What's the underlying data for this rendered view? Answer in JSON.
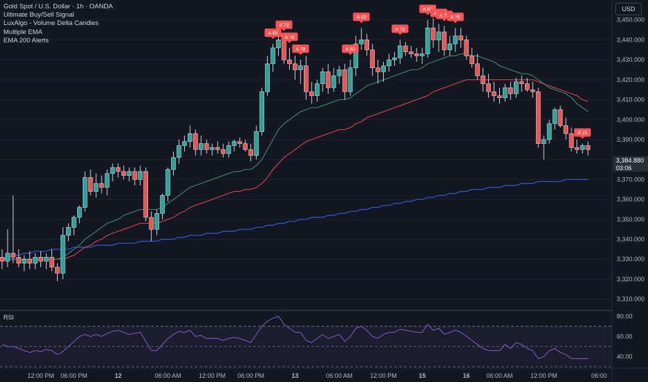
{
  "header": {
    "symbol_title": "Gold Spot / U.S. Dollar · 1h · OANDA",
    "indicators": [
      "Ultimate Buy/Sell Signal",
      "LuxAlgo - Volume Delta Candles",
      "Multiple EMA",
      "EMA 200 Alerts"
    ],
    "currency_button": "USD"
  },
  "colors": {
    "background": "#131722",
    "up": "#26a69a",
    "down": "#ef5350",
    "ema_fast": "#3c8d6e",
    "ema_mid": "#d9434e",
    "ema_200": "#2f5cd6",
    "rsi": "#7e57c2",
    "signal": "#ff5252"
  },
  "price_tag": {
    "price": "3,384.880",
    "countdown": "03:06"
  },
  "rsi_panel": {
    "label": "RSI",
    "levels": [
      "80.00",
      "60.00",
      "40.00"
    ]
  },
  "chart_data": {
    "type": "candlestick",
    "ylim": [
      3305,
      3460
    ],
    "y_ticks": [
      "3,450.000",
      "3,440.000",
      "3,430.000",
      "3,420.000",
      "3,410.000",
      "3,400.000",
      "3,390.000",
      "3,380.000",
      "3,370.000",
      "3,360.000",
      "3,350.000",
      "3,340.000",
      "3,330.000",
      "3,320.000",
      "3,310.000"
    ],
    "x_ticks": [
      "12:00 PM",
      "06:00 PM",
      "12",
      "06:00 AM",
      "12:00 PM",
      "06:00 PM",
      "13",
      "06:00 AM",
      "12:00 PM",
      "15",
      "16",
      "06:00 AM",
      "12:00 PM",
      "06:00"
    ],
    "candles": [
      [
        3331,
        3335,
        3325,
        3329
      ],
      [
        3329,
        3345,
        3326,
        3333
      ],
      [
        3333,
        3362,
        3328,
        3331
      ],
      [
        3331,
        3335,
        3326,
        3328
      ],
      [
        3328,
        3332,
        3324,
        3330
      ],
      [
        3330,
        3334,
        3325,
        3328
      ],
      [
        3328,
        3333,
        3325,
        3331
      ],
      [
        3331,
        3334,
        3326,
        3329
      ],
      [
        3329,
        3333,
        3325,
        3331
      ],
      [
        3331,
        3335,
        3324,
        3326
      ],
      [
        3326,
        3328,
        3319,
        3323
      ],
      [
        3323,
        3346,
        3320,
        3342
      ],
      [
        3342,
        3348,
        3339,
        3346
      ],
      [
        3346,
        3352,
        3342,
        3351
      ],
      [
        3351,
        3357,
        3348,
        3356
      ],
      [
        3356,
        3374,
        3354,
        3371
      ],
      [
        3371,
        3375,
        3362,
        3364
      ],
      [
        3364,
        3373,
        3361,
        3368
      ],
      [
        3368,
        3372,
        3363,
        3366
      ],
      [
        3366,
        3375,
        3362,
        3373
      ],
      [
        3373,
        3378,
        3369,
        3376
      ],
      [
        3376,
        3378,
        3371,
        3374
      ],
      [
        3374,
        3377,
        3370,
        3372
      ],
      [
        3372,
        3376,
        3369,
        3374
      ],
      [
        3374,
        3376,
        3367,
        3370
      ],
      [
        3370,
        3377,
        3367,
        3374
      ],
      [
        3374,
        3376,
        3349,
        3351
      ],
      [
        3351,
        3354,
        3339,
        3345
      ],
      [
        3345,
        3355,
        3342,
        3353
      ],
      [
        3353,
        3363,
        3350,
        3362
      ],
      [
        3362,
        3376,
        3359,
        3375
      ],
      [
        3375,
        3384,
        3372,
        3381
      ],
      [
        3381,
        3390,
        3378,
        3387
      ],
      [
        3387,
        3392,
        3384,
        3389
      ],
      [
        3389,
        3397,
        3386,
        3393
      ],
      [
        3393,
        3395,
        3382,
        3385
      ],
      [
        3385,
        3392,
        3382,
        3388
      ],
      [
        3388,
        3390,
        3383,
        3385
      ],
      [
        3385,
        3388,
        3382,
        3386
      ],
      [
        3386,
        3389,
        3383,
        3385
      ],
      [
        3385,
        3388,
        3381,
        3383
      ],
      [
        3383,
        3389,
        3381,
        3387
      ],
      [
        3387,
        3390,
        3384,
        3389
      ],
      [
        3389,
        3391,
        3386,
        3388
      ],
      [
        3388,
        3390,
        3384,
        3385
      ],
      [
        3385,
        3388,
        3379,
        3382
      ],
      [
        3382,
        3397,
        3380,
        3394
      ],
      [
        3394,
        3416,
        3392,
        3414
      ],
      [
        3414,
        3432,
        3412,
        3428
      ],
      [
        3428,
        3438,
        3424,
        3436
      ],
      [
        3436,
        3444,
        3432,
        3440
      ],
      [
        3440,
        3442,
        3428,
        3430
      ],
      [
        3430,
        3436,
        3425,
        3428
      ],
      [
        3428,
        3432,
        3420,
        3425
      ],
      [
        3425,
        3430,
        3418,
        3427
      ],
      [
        3427,
        3432,
        3410,
        3414
      ],
      [
        3414,
        3419,
        3408,
        3412
      ],
      [
        3412,
        3420,
        3409,
        3418
      ],
      [
        3418,
        3426,
        3414,
        3424
      ],
      [
        3424,
        3428,
        3413,
        3416
      ],
      [
        3416,
        3426,
        3414,
        3422
      ],
      [
        3422,
        3427,
        3418,
        3425
      ],
      [
        3425,
        3428,
        3410,
        3414
      ],
      [
        3414,
        3430,
        3412,
        3426
      ],
      [
        3426,
        3442,
        3422,
        3438
      ],
      [
        3438,
        3446,
        3435,
        3440
      ],
      [
        3440,
        3443,
        3432,
        3435
      ],
      [
        3435,
        3438,
        3422,
        3426
      ],
      [
        3426,
        3430,
        3418,
        3424
      ],
      [
        3424,
        3429,
        3419,
        3427
      ],
      [
        3427,
        3433,
        3424,
        3430
      ],
      [
        3430,
        3434,
        3427,
        3431
      ],
      [
        3431,
        3440,
        3428,
        3437
      ],
      [
        3437,
        3439,
        3432,
        3434
      ],
      [
        3434,
        3437,
        3431,
        3433
      ],
      [
        3433,
        3436,
        3429,
        3432
      ],
      [
        3432,
        3436,
        3428,
        3433
      ],
      [
        3433,
        3450,
        3431,
        3446
      ],
      [
        3446,
        3451,
        3436,
        3440
      ],
      [
        3440,
        3448,
        3434,
        3444
      ],
      [
        3444,
        3447,
        3432,
        3435
      ],
      [
        3435,
        3442,
        3432,
        3438
      ],
      [
        3438,
        3446,
        3434,
        3442
      ],
      [
        3442,
        3446,
        3436,
        3440
      ],
      [
        3440,
        3442,
        3430,
        3432
      ],
      [
        3432,
        3436,
        3426,
        3428
      ],
      [
        3428,
        3433,
        3420,
        3422
      ],
      [
        3422,
        3426,
        3414,
        3418
      ],
      [
        3418,
        3423,
        3411,
        3414
      ],
      [
        3414,
        3419,
        3409,
        3412
      ],
      [
        3412,
        3416,
        3408,
        3411
      ],
      [
        3411,
        3418,
        3409,
        3416
      ],
      [
        3416,
        3419,
        3410,
        3413
      ],
      [
        3413,
        3421,
        3411,
        3419
      ],
      [
        3419,
        3422,
        3414,
        3418
      ],
      [
        3418,
        3421,
        3414,
        3415
      ],
      [
        3415,
        3419,
        3411,
        3414
      ],
      [
        3414,
        3416,
        3386,
        3388
      ],
      [
        3388,
        3392,
        3380,
        3390
      ],
      [
        3390,
        3400,
        3388,
        3398
      ],
      [
        3398,
        3406,
        3395,
        3405
      ],
      [
        3405,
        3407,
        3396,
        3397
      ],
      [
        3397,
        3401,
        3390,
        3393
      ],
      [
        3393,
        3396,
        3384,
        3386
      ],
      [
        3386,
        3390,
        3383,
        3385
      ],
      [
        3385,
        3388,
        3383,
        3387
      ],
      [
        3387,
        3389,
        3382,
        3385
      ]
    ],
    "ema_fast": [
      3330,
      3330,
      3330,
      3330,
      3330,
      3330,
      3330,
      3330,
      3330,
      3330,
      3330,
      3331,
      3333,
      3335,
      3337,
      3340,
      3342,
      3344,
      3346,
      3348,
      3349,
      3350,
      3352,
      3353,
      3354,
      3355,
      3355,
      3355,
      3355,
      3356,
      3358,
      3360,
      3362,
      3364,
      3366,
      3367,
      3368,
      3369,
      3370,
      3371,
      3372,
      3373,
      3374,
      3374,
      3375,
      3375,
      3377,
      3380,
      3385,
      3390,
      3395,
      3398,
      3400,
      3402,
      3404,
      3405,
      3406,
      3406,
      3407,
      3408,
      3409,
      3410,
      3410,
      3411,
      3413,
      3415,
      3417,
      3418,
      3419,
      3420,
      3421,
      3422,
      3423,
      3424,
      3425,
      3425,
      3426,
      3428,
      3429,
      3430,
      3431,
      3432,
      3432,
      3433,
      3433,
      3432,
      3432,
      3431,
      3430,
      3429,
      3427,
      3426,
      3425,
      3424,
      3423,
      3423,
      3422,
      3420,
      3418,
      3416,
      3415,
      3414,
      3413,
      3411,
      3408,
      3406,
      3404
    ],
    "ema_mid": [
      3330,
      3330,
      3330,
      3330,
      3330,
      3330,
      3330,
      3330,
      3330,
      3330,
      3330,
      3330,
      3331,
      3332,
      3334,
      3336,
      3337,
      3339,
      3340,
      3342,
      3343,
      3344,
      3345,
      3346,
      3347,
      3348,
      3348,
      3348,
      3348,
      3349,
      3350,
      3351,
      3353,
      3354,
      3356,
      3357,
      3358,
      3359,
      3360,
      3361,
      3362,
      3363,
      3364,
      3364,
      3365,
      3365,
      3366,
      3368,
      3371,
      3375,
      3378,
      3381,
      3383,
      3385,
      3387,
      3389,
      3390,
      3391,
      3392,
      3393,
      3394,
      3395,
      3395,
      3396,
      3398,
      3399,
      3401,
      3402,
      3403,
      3404,
      3405,
      3406,
      3407,
      3408,
      3409,
      3410,
      3411,
      3412,
      3414,
      3415,
      3416,
      3417,
      3418,
      3419,
      3420,
      3420,
      3420,
      3420,
      3420,
      3420,
      3420,
      3420,
      3420,
      3420,
      3420,
      3420,
      3420,
      3419,
      3418,
      3417,
      3416,
      3415,
      3414,
      3413,
      3412,
      3410,
      3409
    ],
    "ema_200": [
      3330,
      3331,
      3332,
      3332,
      3333,
      3333,
      3334,
      3334,
      3334,
      3335,
      3335,
      3335,
      3335,
      3336,
      3336,
      3336,
      3336,
      3337,
      3337,
      3337,
      3337,
      3338,
      3338,
      3338,
      3338,
      3339,
      3339,
      3339,
      3339,
      3340,
      3340,
      3340,
      3341,
      3341,
      3342,
      3342,
      3342,
      3343,
      3343,
      3343,
      3344,
      3344,
      3344,
      3345,
      3345,
      3345,
      3346,
      3346,
      3347,
      3347,
      3348,
      3348,
      3349,
      3349,
      3350,
      3350,
      3351,
      3351,
      3351,
      3352,
      3352,
      3353,
      3353,
      3354,
      3354,
      3355,
      3355,
      3356,
      3356,
      3357,
      3357,
      3358,
      3358,
      3359,
      3359,
      3360,
      3360,
      3361,
      3361,
      3362,
      3362,
      3363,
      3363,
      3364,
      3364,
      3365,
      3365,
      3365,
      3366,
      3366,
      3366,
      3367,
      3367,
      3367,
      3368,
      3368,
      3368,
      3369,
      3369,
      3369,
      3369,
      3369,
      3370,
      3370,
      3370,
      3370,
      3370
    ],
    "signals": [
      {
        "index": 49,
        "label": "A 85"
      },
      {
        "index": 51,
        "label": "A 79"
      },
      {
        "index": 52,
        "label": "A 78"
      },
      {
        "index": 54,
        "label": "A 78"
      },
      {
        "index": 63,
        "label": "A 83"
      },
      {
        "index": 65,
        "label": "A 83"
      },
      {
        "index": 72,
        "label": "A 79"
      },
      {
        "index": 77,
        "label": "A 83"
      },
      {
        "index": 79,
        "label": "A 83"
      },
      {
        "index": 80,
        "label": "A 78"
      },
      {
        "index": 82,
        "label": "A 76"
      },
      {
        "index": 105,
        "label": "A 15"
      }
    ],
    "rsi": {
      "ylim": [
        30,
        85
      ],
      "upper": 70,
      "lower": 30,
      "middle": 50,
      "values": [
        52,
        50,
        50,
        48,
        46,
        44,
        46,
        45,
        47,
        46,
        42,
        45,
        50,
        55,
        60,
        62,
        60,
        62,
        60,
        63,
        65,
        66,
        64,
        62,
        63,
        64,
        55,
        46,
        46,
        52,
        58,
        62,
        65,
        64,
        66,
        60,
        61,
        58,
        58,
        58,
        56,
        58,
        59,
        58,
        56,
        54,
        62,
        70,
        75,
        78,
        80,
        72,
        68,
        64,
        64,
        56,
        54,
        58,
        62,
        58,
        60,
        62,
        55,
        60,
        68,
        70,
        66,
        60,
        58,
        62,
        64,
        64,
        67,
        66,
        65,
        64,
        64,
        72,
        66,
        68,
        62,
        64,
        66,
        64,
        60,
        56,
        52,
        48,
        46,
        46,
        46,
        52,
        48,
        54,
        52,
        48,
        46,
        38,
        40,
        46,
        48,
        44,
        42,
        38,
        38,
        38,
        38
      ]
    }
  }
}
